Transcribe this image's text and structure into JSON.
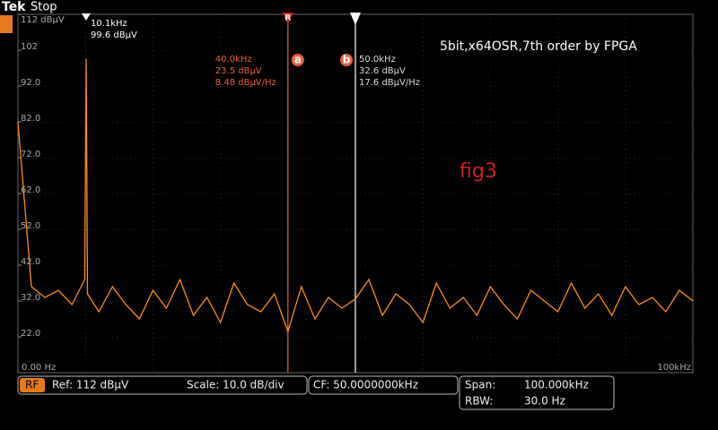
{
  "chart_data": {
    "type": "line",
    "brand": "Tek",
    "status": "Stop",
    "annotation": "5bit,x64OSR,7th order by FPGA",
    "figure_label": "fig3",
    "xlim": [
      0,
      100000
    ],
    "ylim": [
      12,
      112
    ],
    "xticks": [
      {
        "value": 0,
        "label": "0.00 Hz"
      },
      {
        "value": 100000,
        "label": "100kHz"
      }
    ],
    "yticks": [
      {
        "value": 112,
        "label": "112 dBµV"
      },
      102,
      {
        "value": 92,
        "label": "92.0"
      },
      {
        "value": 82,
        "label": "82.0"
      },
      {
        "value": 72,
        "label": "72.0"
      },
      {
        "value": 62,
        "label": "62.0"
      },
      {
        "value": 52,
        "label": "52.0"
      },
      {
        "value": 42,
        "label": "42.0"
      },
      {
        "value": 32,
        "label": "32.0"
      },
      {
        "value": 22,
        "label": "22.0"
      }
    ],
    "x": [
      0,
      2000,
      4000,
      6000,
      8000,
      9900,
      10100,
      10300,
      12000,
      14000,
      16000,
      18000,
      20000,
      22000,
      24000,
      26000,
      28000,
      30000,
      32000,
      34000,
      36000,
      38000,
      40000,
      42000,
      44000,
      46000,
      48000,
      50000,
      52000,
      54000,
      56000,
      58000,
      60000,
      62000,
      64000,
      66000,
      68000,
      70000,
      72000,
      74000,
      76000,
      78000,
      80000,
      82000,
      84000,
      86000,
      88000,
      90000,
      92000,
      94000,
      96000,
      98000,
      100000
    ],
    "series": [
      {
        "name": "trace",
        "color": "#ff8c1a",
        "values": [
          82,
          36,
          33,
          35,
          31,
          38,
          99.6,
          34,
          29,
          36,
          31,
          27,
          35,
          30,
          38,
          28,
          33,
          26,
          37,
          31,
          29,
          34,
          23.5,
          36,
          27,
          33,
          30,
          32.6,
          38,
          28,
          34,
          31,
          26,
          37,
          30,
          33,
          28,
          36,
          31,
          27,
          35,
          32,
          29,
          37,
          30,
          34,
          28,
          36,
          31,
          33,
          29,
          35,
          32
        ]
      }
    ],
    "marker": {
      "frequency": "10.1kHz",
      "level": "99.6 dBµV"
    },
    "cursors": [
      {
        "x": 40000,
        "label": "R",
        "id": "a",
        "frequency": "40.0kHz",
        "level": "23.5 dBµV",
        "density": "8.48 dBµV/Hz"
      },
      {
        "x": 50000,
        "id": "b",
        "frequency": "50.0kHz",
        "level": "32.6 dBµV",
        "density": "17.6 dBµV/Hz"
      }
    ],
    "status_bar": {
      "badge": "RF",
      "ref": "Ref: 112 dBµV",
      "scale": "Scale: 10.0 dB/div",
      "cf": "CF: 50.0000000kHz",
      "span_label": "Span:",
      "span": "100.000kHz",
      "rbw_label": "RBW:",
      "rbw": "30.0 Hz"
    }
  }
}
